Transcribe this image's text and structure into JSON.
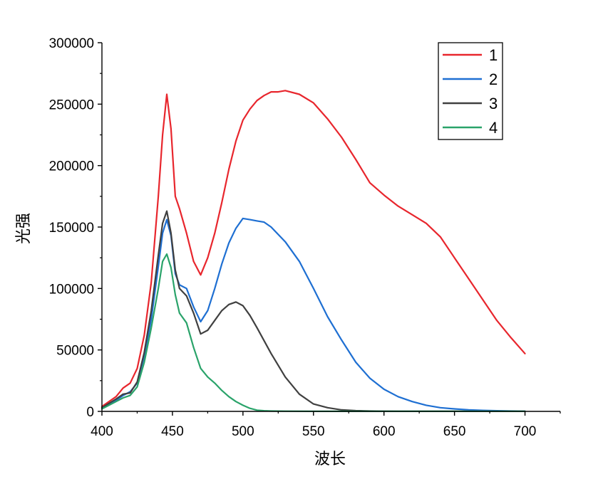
{
  "chart_data": {
    "type": "line",
    "title": "",
    "xlabel": "波长",
    "ylabel": "光强",
    "xlim": [
      400,
      725
    ],
    "ylim": [
      0,
      300000
    ],
    "xticks": [
      400,
      450,
      500,
      550,
      600,
      650,
      700
    ],
    "xtick_labels": [
      "400",
      "450",
      "500",
      "550",
      "600",
      "650",
      "700"
    ],
    "yticks": [
      0,
      50000,
      100000,
      150000,
      200000,
      250000,
      300000
    ],
    "ytick_labels": [
      "0",
      "50000",
      "100000",
      "150000",
      "200000",
      "250000",
      "300000"
    ],
    "grid": false,
    "legend_position": "top-right",
    "series": [
      {
        "name": "1",
        "color": "#e8262d",
        "x": [
          400,
          410,
          415,
          420,
          425,
          430,
          435,
          440,
          443,
          446,
          449,
          452,
          455,
          460,
          465,
          470,
          475,
          480,
          485,
          490,
          495,
          500,
          505,
          510,
          515,
          520,
          525,
          530,
          540,
          550,
          560,
          570,
          580,
          590,
          600,
          610,
          620,
          630,
          640,
          650,
          660,
          670,
          680,
          690,
          700
        ],
        "y": [
          4000,
          12000,
          19000,
          23000,
          35000,
          62000,
          105000,
          175000,
          225000,
          258000,
          230000,
          175000,
          165000,
          145000,
          122000,
          111000,
          125000,
          145000,
          170000,
          197000,
          220000,
          237000,
          246000,
          253000,
          257000,
          260000,
          260000,
          261000,
          258000,
          251000,
          238000,
          223000,
          205000,
          186000,
          176000,
          167000,
          160000,
          153000,
          142000,
          125000,
          108000,
          91000,
          74000,
          60000,
          47000
        ]
      },
      {
        "name": "2",
        "color": "#1e6fd2",
        "x": [
          400,
          410,
          415,
          420,
          425,
          430,
          435,
          440,
          443,
          446,
          449,
          452,
          455,
          460,
          465,
          470,
          475,
          480,
          485,
          490,
          495,
          500,
          505,
          510,
          515,
          520,
          530,
          540,
          550,
          560,
          570,
          580,
          590,
          600,
          610,
          620,
          630,
          640,
          650,
          660,
          670,
          680,
          690,
          700
        ],
        "y": [
          3000,
          9000,
          13000,
          16000,
          23000,
          45000,
          75000,
          118000,
          145000,
          156000,
          143000,
          112000,
          103000,
          100000,
          85000,
          73000,
          82000,
          100000,
          120000,
          137000,
          149000,
          157000,
          156000,
          155000,
          154000,
          150000,
          138000,
          122000,
          100000,
          77000,
          58000,
          40000,
          27000,
          18000,
          12000,
          8000,
          5000,
          3000,
          2000,
          1300,
          800,
          500,
          300,
          200
        ]
      },
      {
        "name": "3",
        "color": "#404040",
        "x": [
          400,
          410,
          415,
          420,
          425,
          430,
          435,
          440,
          443,
          446,
          449,
          452,
          455,
          460,
          465,
          470,
          475,
          480,
          485,
          490,
          495,
          500,
          505,
          510,
          520,
          530,
          540,
          550,
          560,
          570,
          580,
          590,
          600,
          610,
          620,
          630,
          650,
          700
        ],
        "y": [
          3000,
          10000,
          14000,
          15000,
          24000,
          48000,
          82000,
          127000,
          153000,
          163000,
          145000,
          115000,
          100000,
          94000,
          80000,
          63000,
          66000,
          74000,
          82000,
          87000,
          89000,
          86000,
          78000,
          68000,
          47000,
          28000,
          14000,
          6000,
          3000,
          1200,
          600,
          300,
          150,
          100,
          80,
          60,
          50,
          40
        ]
      },
      {
        "name": "4",
        "color": "#2aa36a",
        "x": [
          400,
          410,
          415,
          420,
          425,
          430,
          435,
          440,
          443,
          446,
          449,
          452,
          455,
          460,
          465,
          470,
          475,
          480,
          485,
          490,
          495,
          500,
          505,
          510,
          515,
          520,
          530,
          550,
          600,
          650,
          700
        ],
        "y": [
          2000,
          8000,
          11000,
          13000,
          20000,
          40000,
          68000,
          100000,
          122000,
          128000,
          117000,
          95000,
          80000,
          72000,
          52000,
          35000,
          28000,
          23000,
          17000,
          12000,
          8000,
          5000,
          2500,
          1000,
          500,
          300,
          150,
          80,
          50,
          40,
          30
        ]
      }
    ]
  }
}
